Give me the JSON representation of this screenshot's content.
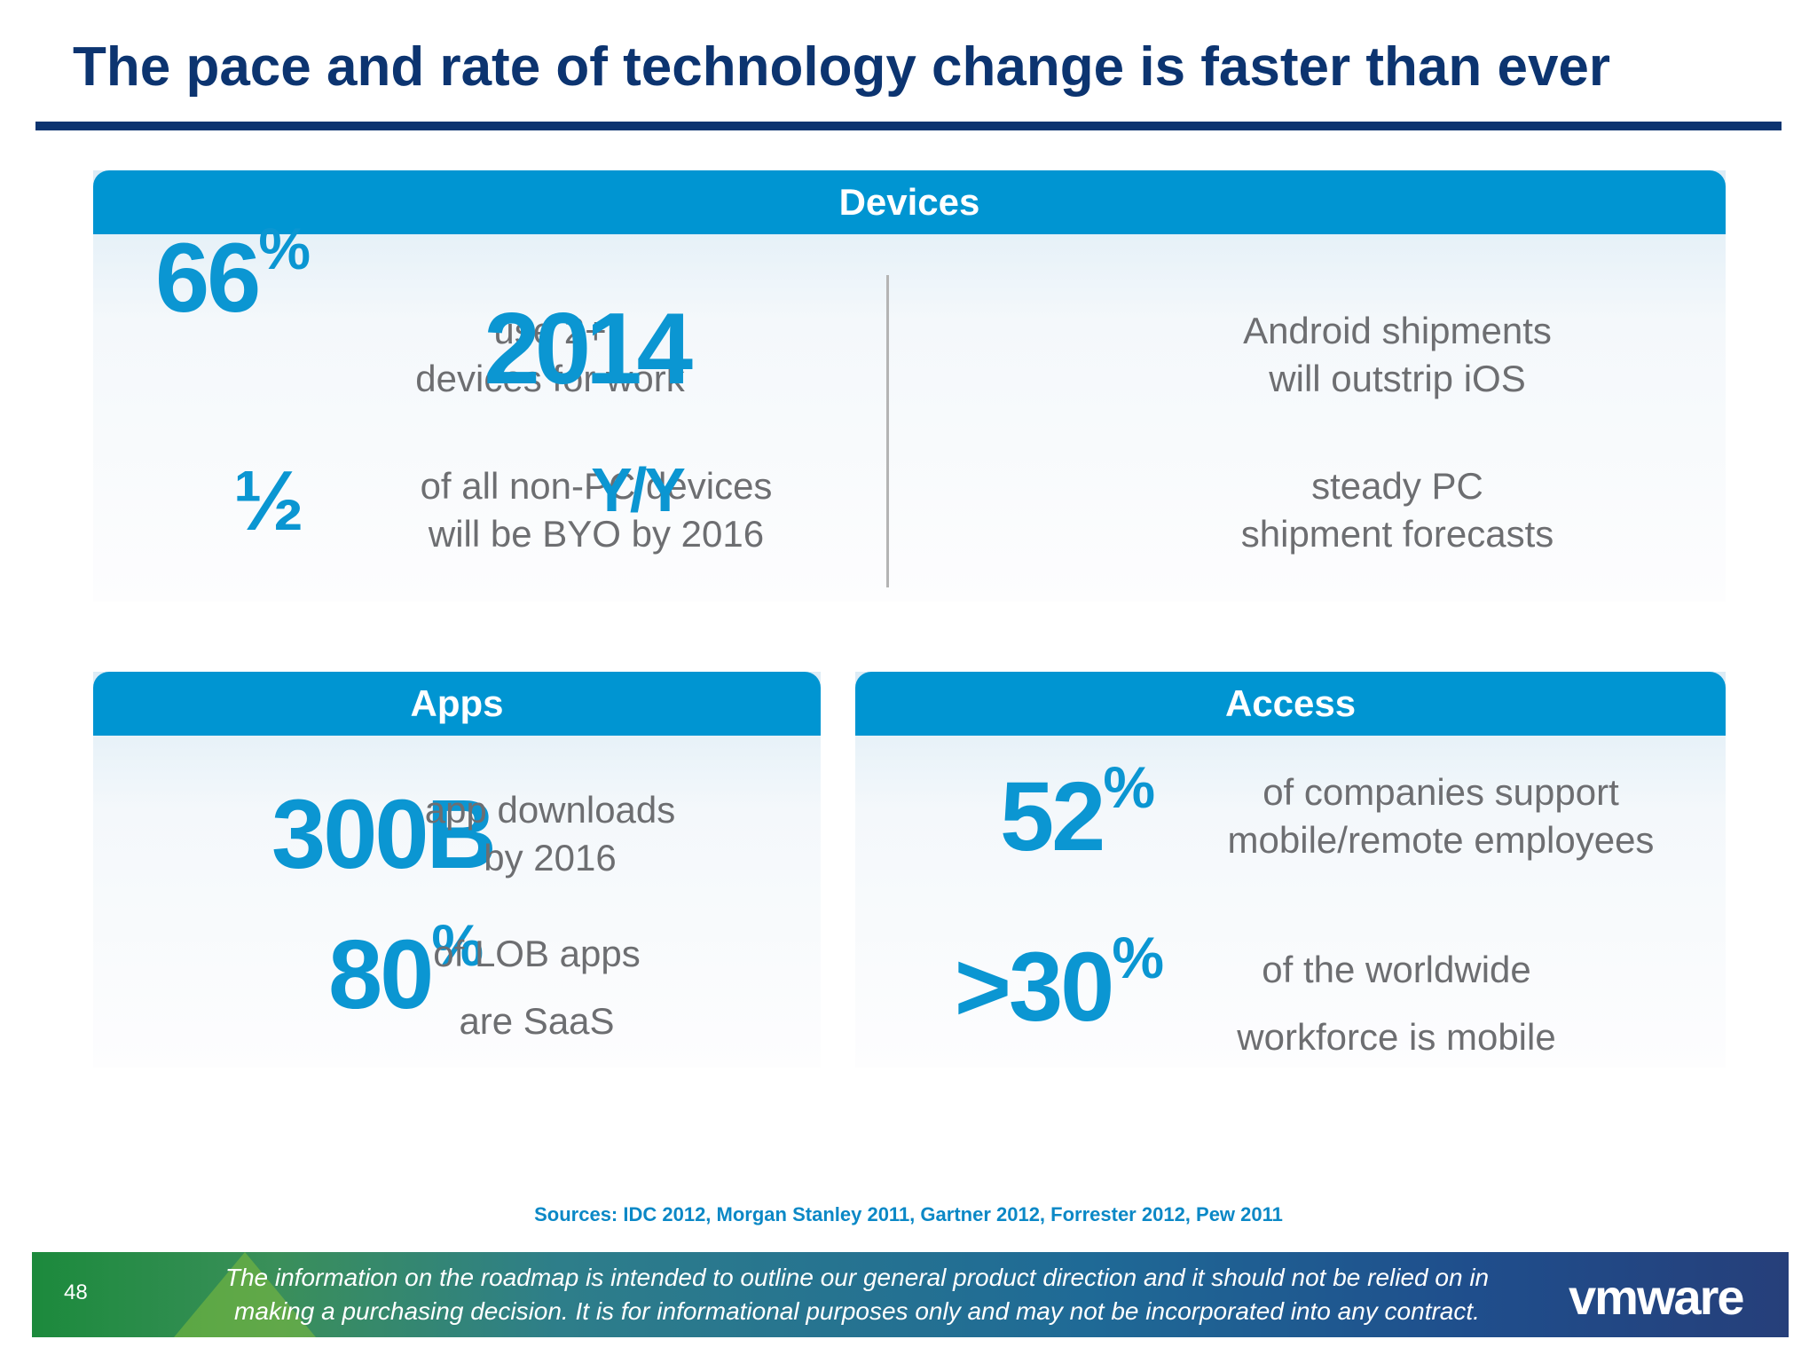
{
  "title": "The pace and rate of technology change is faster than ever",
  "devices": {
    "header": "Devices",
    "stats": [
      {
        "value": "66",
        "suffix": "%",
        "lines": [
          "use 2+",
          "devices for work"
        ]
      },
      {
        "value": "½",
        "suffix": "",
        "lines": [
          "of all non-PC devices",
          "will be BYO by 2016"
        ]
      },
      {
        "value": "2014",
        "suffix": "",
        "lines": [
          "Android shipments",
          "will outstrip iOS"
        ]
      },
      {
        "value": "Y/Y",
        "suffix": "",
        "lines": [
          "steady PC",
          "shipment forecasts"
        ]
      }
    ]
  },
  "apps": {
    "header": "Apps",
    "stats": [
      {
        "value": "300B",
        "suffix": "",
        "lines": [
          "app downloads",
          "by 2016"
        ]
      },
      {
        "value": "80",
        "suffix": "%",
        "lines": [
          "of LOB apps",
          "are SaaS"
        ]
      }
    ]
  },
  "access": {
    "header": "Access",
    "stats": [
      {
        "value": "52",
        "suffix": "%",
        "lines": [
          "of companies support",
          "mobile/remote employees"
        ]
      },
      {
        "value": ">30",
        "suffix": "%",
        "lines": [
          "of the worldwide",
          "workforce is mobile"
        ]
      }
    ]
  },
  "sources": "Sources: IDC 2012, Morgan Stanley 2011, Gartner 2012, Forrester 2012, Pew 2011",
  "footer": {
    "page_number": "48",
    "disclaimer_line1": "The information on the roadmap is intended to outline our general product direction and it should not be relied on in",
    "disclaimer_line2": "making a purchasing decision.  It is for informational purposes only and may not be incorporated into any contract.",
    "logo_text": "vmware"
  },
  "colors": {
    "title": "#0c3470",
    "accent": "#0095d2",
    "stat": "#0b96d2",
    "body_text": "#6d6e71"
  }
}
